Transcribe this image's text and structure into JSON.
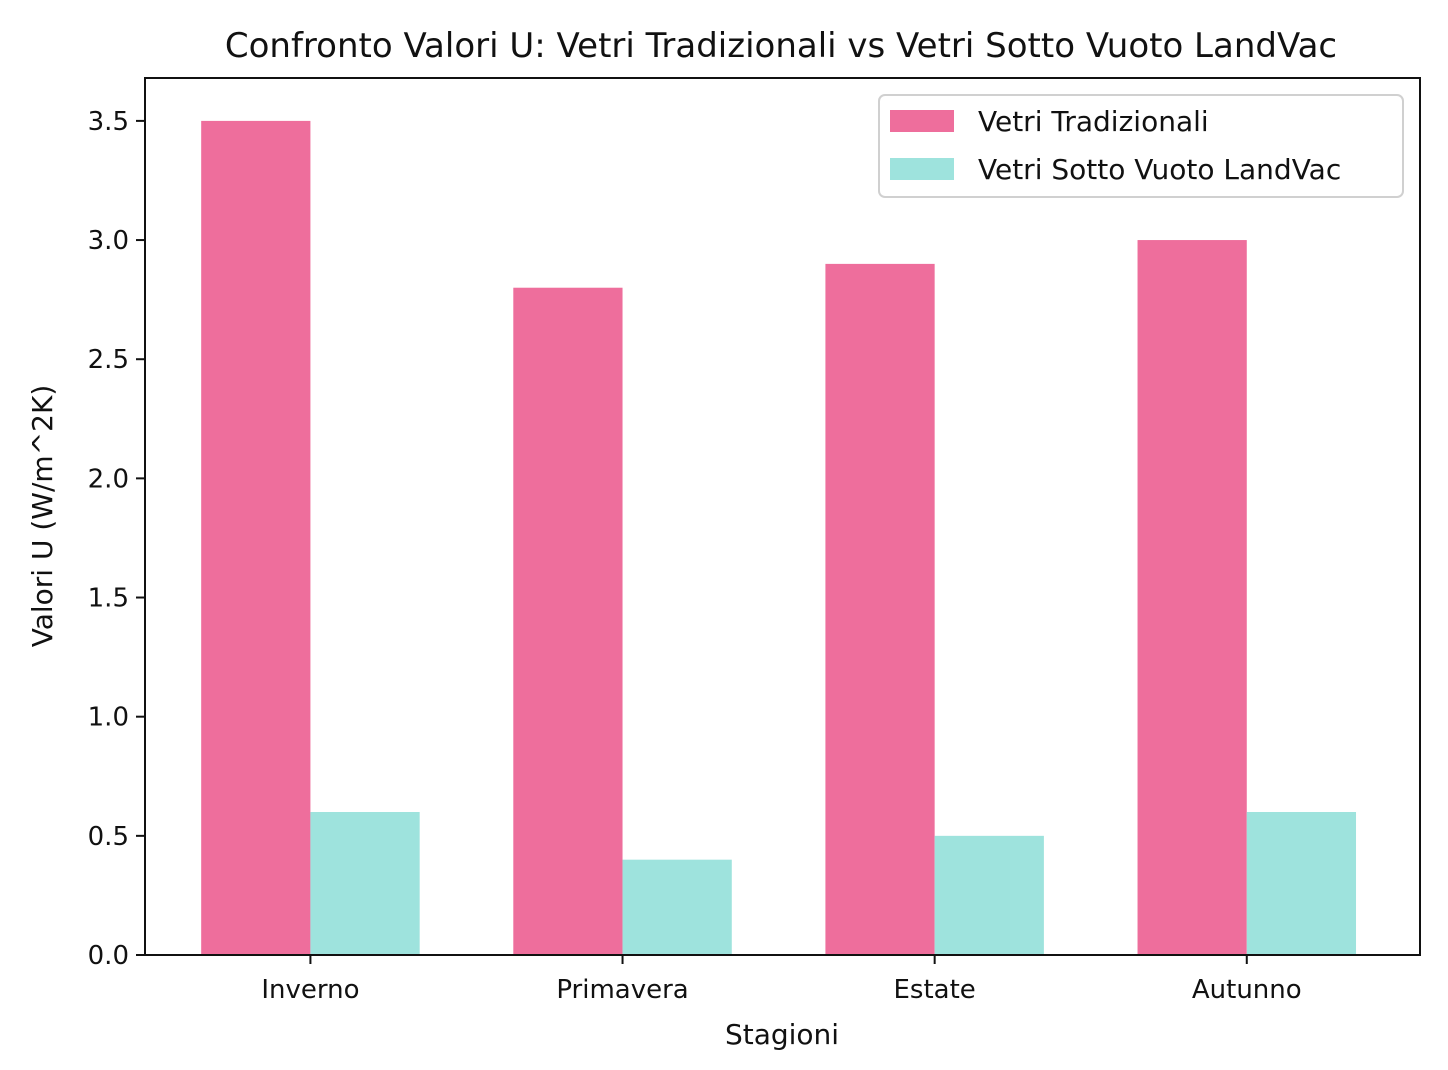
{
  "chart_data": {
    "type": "bar",
    "title": "Confronto Valori U: Vetri Tradizionali vs Vetri Sotto Vuoto LandVac",
    "xlabel": "Stagioni",
    "ylabel": "Valori U (W/m^2K)",
    "categories": [
      "Inverno",
      "Primavera",
      "Estate",
      "Autunno"
    ],
    "series": [
      {
        "name": "Vetri Tradizionali",
        "values": [
          3.5,
          2.8,
          2.9,
          3.0
        ],
        "color": "#ee6e9c"
      },
      {
        "name": "Vetri Sotto Vuoto LandVac",
        "values": [
          0.6,
          0.4,
          0.5,
          0.6
        ],
        "color": "#9ee3dd"
      }
    ],
    "ylim": [
      0,
      3.68
    ],
    "yticks": [
      "0.0",
      "0.5",
      "1.0",
      "1.5",
      "2.0",
      "2.5",
      "3.0",
      "3.5"
    ],
    "grid": false,
    "legend_position": "top-right"
  }
}
